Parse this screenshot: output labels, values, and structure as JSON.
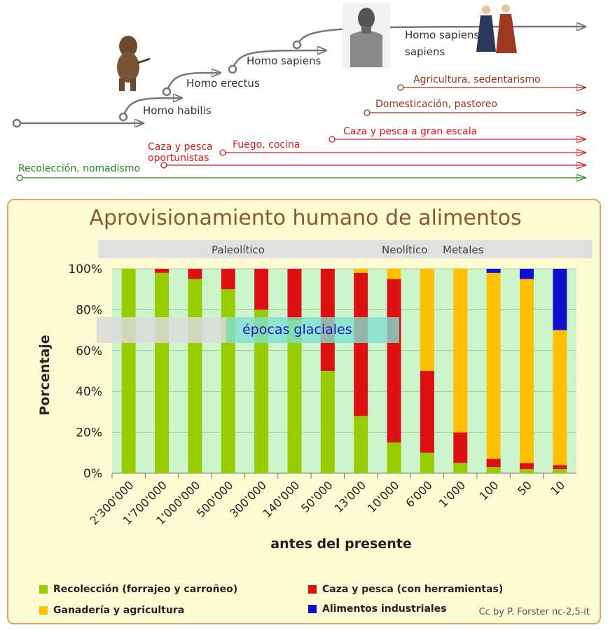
{
  "timeline": {
    "species": [
      "Homo habilis",
      "Homo erectus",
      "Homo sapiens",
      "Homo sapiens",
      "sapiens"
    ],
    "practices": [
      {
        "label": "Agricultura, sedentarismo",
        "color": "#a0301c"
      },
      {
        "label": "Domesticación, pastoreo",
        "color": "#a0301c"
      },
      {
        "label": "Caza y pesca a gran escala",
        "color": "#e01818"
      },
      {
        "label": "Fuego, cocina",
        "color": "#e01818"
      },
      {
        "label": "Caza y pesca",
        "color": "#e01818"
      },
      {
        "label": "oportunistas",
        "color": "#e01818"
      },
      {
        "label": "Recolección, nomadismo",
        "color": "#1a8a1a"
      }
    ]
  },
  "chart_data": {
    "type": "bar",
    "stacked": true,
    "title": "Aprovisionamiento humano de alimentos",
    "xlabel": "antes del presente",
    "ylabel": "Porcentaje",
    "ylim": [
      0,
      100
    ],
    "yticks": [
      "0%",
      "20%",
      "40%",
      "60%",
      "80%",
      "100%"
    ],
    "categories": [
      "2'300'000",
      "1'700'000",
      "1'000'000",
      "500'000",
      "300'000",
      "140'000",
      "50'000",
      "13'000",
      "10'000",
      "6'000",
      "1'000",
      "100",
      "50",
      "10"
    ],
    "periods": [
      {
        "label": "Paleolítico"
      },
      {
        "label": "Neolítico"
      },
      {
        "label": "Metales"
      }
    ],
    "annotation": "épocas glaciales",
    "series": [
      {
        "name": "Recolección (forrajeo y carroñeo)",
        "color": "#99cc00",
        "values": [
          100,
          98,
          95,
          90,
          80,
          75,
          50,
          28,
          15,
          10,
          5,
          3,
          2,
          2
        ]
      },
      {
        "name": "Caza y pesca (con herramientas)",
        "color": "#dd1111",
        "values": [
          0,
          2,
          5,
          10,
          20,
          25,
          50,
          70,
          80,
          40,
          15,
          4,
          3,
          2
        ]
      },
      {
        "name": "Ganadería y agricultura",
        "color": "#ffc000",
        "values": [
          0,
          0,
          0,
          0,
          0,
          0,
          0,
          2,
          5,
          50,
          80,
          91,
          90,
          66
        ]
      },
      {
        "name": "Alimentos industriales",
        "color": "#1010cc",
        "values": [
          0,
          0,
          0,
          0,
          0,
          0,
          0,
          0,
          0,
          0,
          0,
          2,
          5,
          30
        ]
      }
    ],
    "credit": "Cc by P. Forster nc-2,5-it"
  }
}
